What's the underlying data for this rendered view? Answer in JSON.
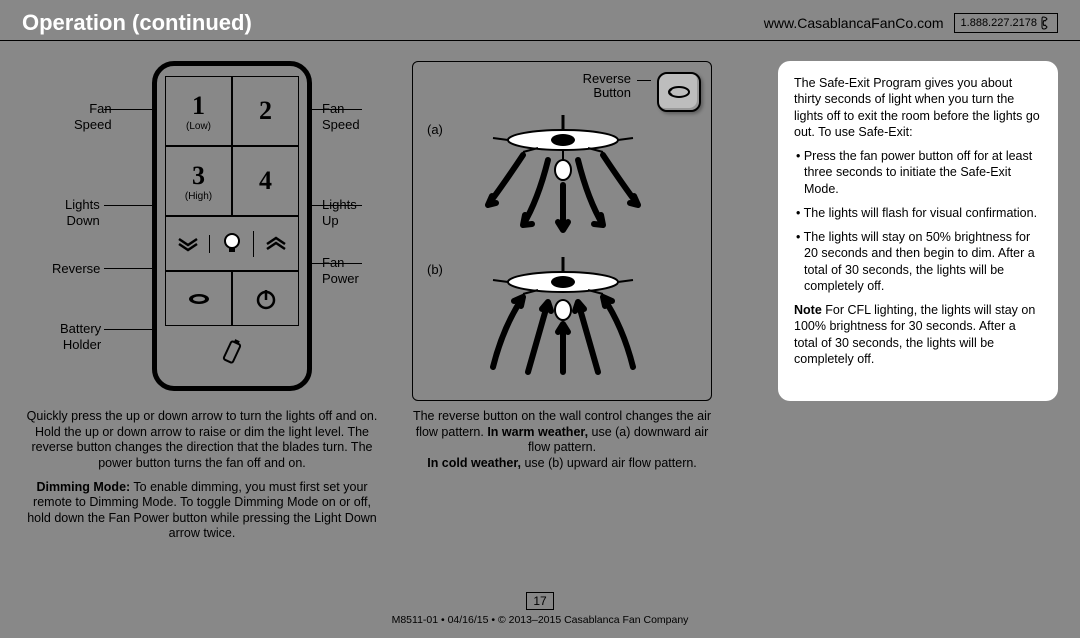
{
  "header": {
    "title": "Operation (continued)",
    "url": "www.CasablancaFanCo.com",
    "phone": "1.888.227.2178"
  },
  "remote": {
    "cells": {
      "one": "1",
      "two": "2",
      "three": "3",
      "four": "4",
      "low": "(Low)",
      "high": "(High)"
    },
    "labels": {
      "fanspeed_l": "Fan\nSpeed",
      "fanspeed_r": "Fan\nSpeed",
      "lights_down": "Lights\nDown",
      "lights_up": "Lights\nUp",
      "reverse": "Reverse",
      "fan_power": "Fan\nPower",
      "battery": "Battery\nHolder"
    },
    "para1": "Quickly press the up or down arrow to turn the lights off and on. Hold the up or down arrow to raise or dim the light level. The reverse button changes the direction that the blades turn. The power button turns the fan off and on.",
    "para2_bold": "Dimming Mode:",
    "para2": " To enable dimming, you must first set your remote to Dimming Mode. To toggle Dimming Mode on or off, hold down the Fan Power button while pressing the Light Down arrow twice."
  },
  "airflow": {
    "reverse_label": "Reverse\nButton",
    "a": "(a)",
    "b": "(b)",
    "para_pre": "The reverse button on the wall control changes the air flow pattern. ",
    "warm_bold": "In warm weather,",
    "warm_rest": " use (a) downward air flow pattern.",
    "cold_bold": "In cold weather,",
    "cold_rest": " use (b) upward air flow pattern."
  },
  "safeexit": {
    "intro": "The Safe-Exit Program gives you about thirty seconds of light when you turn the lights off to exit the room before the lights go out. To use Safe-Exit:",
    "b1": "• Press the fan power button off for at least three seconds to initiate the Safe-Exit Mode.",
    "b2": "• The lights will flash for visual confirmation.",
    "b3": "• The lights will stay on 50% brightness for 20 seconds and then begin to dim. After a total of 30 seconds, the lights will be completely off.",
    "note_bold": "Note",
    "note_rest": "  For CFL lighting, the lights will stay on 100% brightness for 30 seconds. After a total of 30 seconds, the lights will be completely off."
  },
  "footer": {
    "page": "17",
    "line": "M8511-01 • 04/16/15 • © 2013–2015 Casablanca Fan Company"
  }
}
